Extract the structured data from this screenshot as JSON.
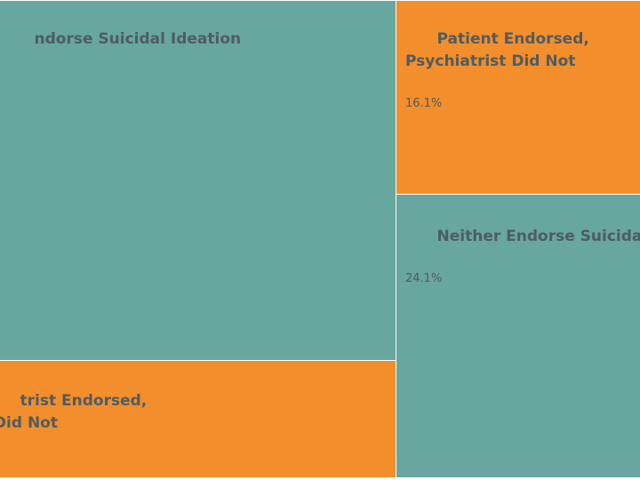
{
  "chart_data": {
    "type": "treemap",
    "title": "",
    "colors": {
      "teal": "#68a6a0",
      "orange": "#f28e2b",
      "text": "#4f5c63"
    },
    "items": [
      {
        "label": "Both Endorse Suicidal Ideation",
        "visible_label": "ndorse Suicidal Ideation",
        "percent_label": "",
        "color": "#68a6a0"
      },
      {
        "label": "Psychiatrist Endorsed, Patient Did Not",
        "visible_label": "trist Endorsed,\n Did Not",
        "percent_label": "",
        "color": "#f28e2b"
      },
      {
        "label": "Patient Endorsed, Psychiatrist Did Not",
        "visible_label": "Patient Endorsed,\nPsychiatrist Did Not",
        "percent_label": "16.1%",
        "color": "#f28e2b"
      },
      {
        "label": "Neither Endorse Suicidal Ideation",
        "visible_label": "Neither Endorse Suicidal Ideation",
        "percent_label": "24.1%",
        "color": "#68a6a0"
      }
    ]
  }
}
